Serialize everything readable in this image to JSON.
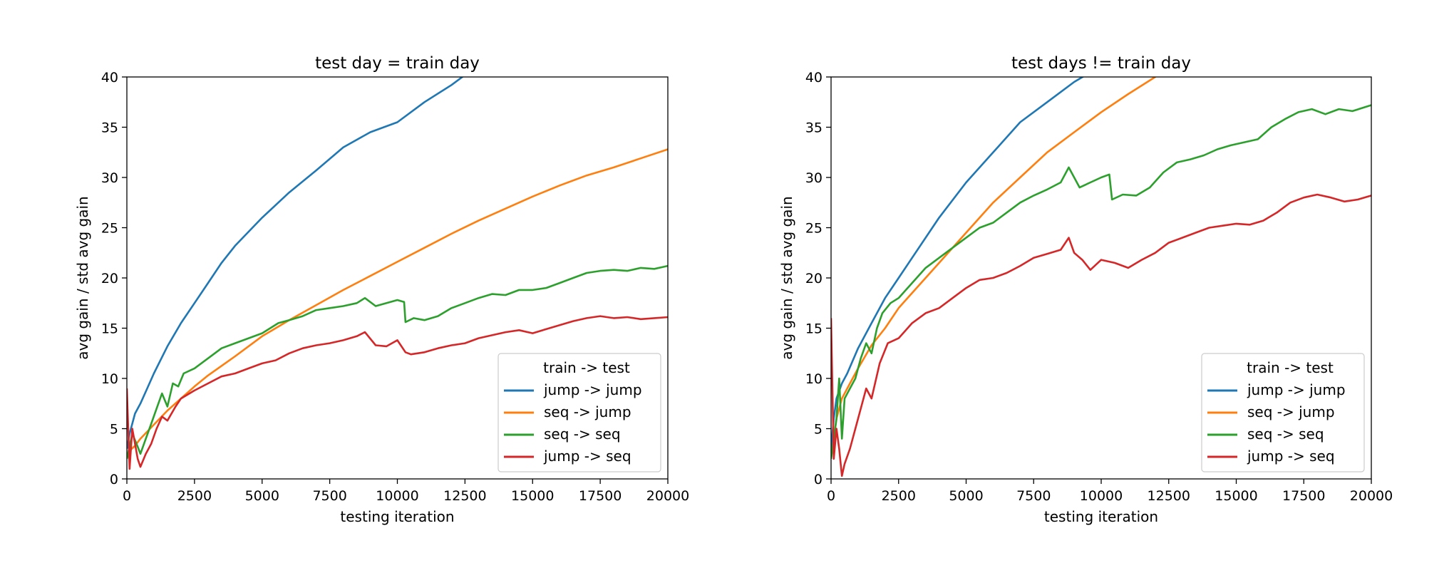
{
  "chart_data": [
    {
      "type": "line",
      "title": "test day = train day",
      "xlabel": "testing iteration",
      "ylabel": "avg gain / std avg gain",
      "xlim": [
        0,
        20000
      ],
      "ylim": [
        0,
        40
      ],
      "xticks": [
        0,
        2500,
        5000,
        7500,
        10000,
        12500,
        15000,
        17500,
        20000
      ],
      "yticks": [
        0,
        5,
        10,
        15,
        20,
        25,
        30,
        35,
        40
      ],
      "legend": {
        "title": "train -> test",
        "placement": "bottom-right"
      },
      "series": [
        {
          "name": "jump -> jump",
          "color": "#1f77b4",
          "x": [
            0,
            100,
            200,
            300,
            500,
            750,
            1000,
            1500,
            2000,
            2500,
            3000,
            3500,
            4000,
            5000,
            6000,
            7000,
            8000,
            9000,
            10000,
            11000,
            12000,
            12500,
            13000
          ],
          "y": [
            3,
            4.5,
            5.5,
            6.5,
            7.5,
            9,
            10.5,
            13.2,
            15.5,
            17.5,
            19.5,
            21.5,
            23.2,
            26,
            28.5,
            30.7,
            33,
            34.5,
            35.5,
            37.5,
            39.2,
            40.2,
            41
          ]
        },
        {
          "name": "seq -> jump",
          "color": "#ff7f0e",
          "x": [
            0,
            100,
            300,
            500,
            1000,
            1500,
            2000,
            2500,
            3000,
            4000,
            5000,
            6000,
            7000,
            8000,
            9000,
            10000,
            11000,
            12000,
            13000,
            14000,
            15000,
            16000,
            17000,
            18000,
            19000,
            20000
          ],
          "y": [
            2,
            2.8,
            3.3,
            4,
            5.4,
            6.8,
            8,
            9.2,
            10.3,
            12.2,
            14.2,
            15.8,
            17.3,
            18.8,
            20.2,
            21.6,
            23,
            24.4,
            25.7,
            26.9,
            28.1,
            29.2,
            30.2,
            31,
            31.9,
            32.8
          ]
        },
        {
          "name": "seq -> seq",
          "color": "#2ca02c",
          "x": [
            0,
            200,
            400,
            500,
            700,
            900,
            1100,
            1300,
            1500,
            1700,
            1900,
            2100,
            2500,
            3000,
            3500,
            4000,
            4500,
            5000,
            5600,
            6000,
            6500,
            7000,
            7500,
            8000,
            8500,
            8800,
            9200,
            9600,
            10000,
            10250,
            10300,
            10600,
            11000,
            11500,
            12000,
            12500,
            13000,
            13500,
            14000,
            14500,
            15000,
            15500,
            16000,
            16500,
            17000,
            17500,
            18000,
            18500,
            19000,
            19500,
            20000
          ],
          "y": [
            2,
            4.5,
            3.2,
            2.5,
            4,
            5.5,
            7,
            8.5,
            7.2,
            9.5,
            9.2,
            10.5,
            11,
            12,
            13,
            13.5,
            14,
            14.5,
            15.5,
            15.8,
            16.2,
            16.8,
            17,
            17.2,
            17.5,
            18,
            17.2,
            17.5,
            17.8,
            17.6,
            15.6,
            16,
            15.8,
            16.2,
            17,
            17.5,
            18,
            18.4,
            18.3,
            18.8,
            18.8,
            19,
            19.5,
            20,
            20.5,
            20.7,
            20.8,
            20.7,
            21,
            20.9,
            21.2
          ]
        },
        {
          "name": "jump -> seq",
          "color": "#d62728",
          "x": [
            0,
            100,
            200,
            300,
            400,
            500,
            700,
            900,
            1100,
            1300,
            1500,
            1800,
            2000,
            2500,
            3000,
            3500,
            4000,
            4500,
            5000,
            5500,
            6000,
            6500,
            7000,
            7500,
            8000,
            8500,
            8800,
            9200,
            9600,
            10000,
            10300,
            10500,
            11000,
            11500,
            12000,
            12500,
            13000,
            13500,
            14000,
            14500,
            15000,
            15500,
            16000,
            16500,
            17000,
            17500,
            18000,
            18500,
            19000,
            19500,
            20000
          ],
          "y": [
            9,
            1,
            5,
            3.5,
            2,
            1.2,
            2.5,
            3.5,
            5,
            6.2,
            5.8,
            7.2,
            8,
            8.8,
            9.5,
            10.2,
            10.5,
            11,
            11.5,
            11.8,
            12.5,
            13,
            13.3,
            13.5,
            13.8,
            14.2,
            14.6,
            13.3,
            13.2,
            13.8,
            12.6,
            12.4,
            12.6,
            13,
            13.3,
            13.5,
            14,
            14.3,
            14.6,
            14.8,
            14.5,
            14.9,
            15.3,
            15.7,
            16,
            16.2,
            16,
            16.1,
            15.9,
            16,
            16.1
          ]
        }
      ]
    },
    {
      "type": "line",
      "title": "test days != train day",
      "xlabel": "testing iteration",
      "ylabel": "avg gain / std avg gain",
      "xlim": [
        0,
        20000
      ],
      "ylim": [
        0,
        40
      ],
      "xticks": [
        0,
        2500,
        5000,
        7500,
        10000,
        12500,
        15000,
        17500,
        20000
      ],
      "yticks": [
        0,
        5,
        10,
        15,
        20,
        25,
        30,
        35,
        40
      ],
      "legend": {
        "title": "train -> test",
        "placement": "bottom-right"
      },
      "series": [
        {
          "name": "jump -> jump",
          "color": "#1f77b4",
          "x": [
            0,
            100,
            200,
            400,
            600,
            1000,
            1500,
            2000,
            2500,
            3000,
            4000,
            5000,
            6000,
            7000,
            8000,
            9000,
            9500,
            10000
          ],
          "y": [
            3,
            6,
            8,
            9.5,
            10.5,
            13,
            15.5,
            18,
            20,
            22,
            26,
            29.5,
            32.5,
            35.5,
            37.5,
            39.5,
            40.3,
            41
          ]
        },
        {
          "name": "seq -> jump",
          "color": "#ff7f0e",
          "x": [
            0,
            100,
            200,
            400,
            700,
            1000,
            1500,
            2000,
            2500,
            3000,
            4000,
            5000,
            6000,
            7000,
            8000,
            9000,
            10000,
            11000,
            12000,
            12500
          ],
          "y": [
            2,
            4,
            6,
            8,
            9.5,
            11,
            13.3,
            15,
            17,
            18.5,
            21.5,
            24.5,
            27.5,
            30,
            32.5,
            34.5,
            36.5,
            38.3,
            40,
            41
          ]
        },
        {
          "name": "seq -> seq",
          "color": "#2ca02c",
          "x": [
            0,
            200,
            300,
            400,
            500,
            700,
            900,
            1100,
            1300,
            1500,
            1700,
            1900,
            2200,
            2500,
            3000,
            3500,
            4000,
            4500,
            5000,
            5500,
            6000,
            6500,
            7000,
            7500,
            8000,
            8500,
            8800,
            9200,
            9600,
            10000,
            10300,
            10400,
            10800,
            11300,
            11800,
            12300,
            12800,
            13300,
            13800,
            14300,
            14800,
            15300,
            15800,
            16300,
            16800,
            17300,
            17800,
            18300,
            18800,
            19300,
            20000
          ],
          "y": [
            2,
            6,
            10,
            4,
            8,
            9,
            10,
            12,
            13.5,
            12.5,
            15,
            16.5,
            17.5,
            18,
            19.5,
            21,
            22,
            23,
            24,
            25,
            25.5,
            26.5,
            27.5,
            28.2,
            28.8,
            29.5,
            31,
            29,
            29.5,
            30,
            30.3,
            27.8,
            28.3,
            28.2,
            29,
            30.5,
            31.5,
            31.8,
            32.2,
            32.8,
            33.2,
            33.5,
            33.8,
            35,
            35.8,
            36.5,
            36.8,
            36.3,
            36.8,
            36.6,
            37.2
          ]
        },
        {
          "name": "jump -> seq",
          "color": "#d62728",
          "x": [
            0,
            100,
            200,
            300,
            400,
            500,
            700,
            900,
            1100,
            1300,
            1500,
            1800,
            2100,
            2500,
            3000,
            3500,
            4000,
            4500,
            5000,
            5500,
            6000,
            6500,
            7000,
            7500,
            8000,
            8500,
            8800,
            9000,
            9300,
            9600,
            10000,
            10500,
            11000,
            11500,
            12000,
            12500,
            13000,
            13500,
            14000,
            14500,
            15000,
            15500,
            16000,
            16500,
            17000,
            17500,
            18000,
            18500,
            19000,
            19500,
            20000
          ],
          "y": [
            16,
            2,
            5,
            3,
            0.3,
            1.5,
            3,
            5,
            7,
            9,
            8,
            11.5,
            13.5,
            14,
            15.5,
            16.5,
            17,
            18,
            19,
            19.8,
            20,
            20.5,
            21.2,
            22,
            22.4,
            22.8,
            24,
            22.5,
            21.8,
            20.8,
            21.8,
            21.5,
            21,
            21.8,
            22.5,
            23.5,
            24,
            24.5,
            25,
            25.2,
            25.4,
            25.3,
            25.7,
            26.5,
            27.5,
            28,
            28.3,
            28,
            27.6,
            27.8,
            28.2
          ]
        }
      ]
    }
  ]
}
